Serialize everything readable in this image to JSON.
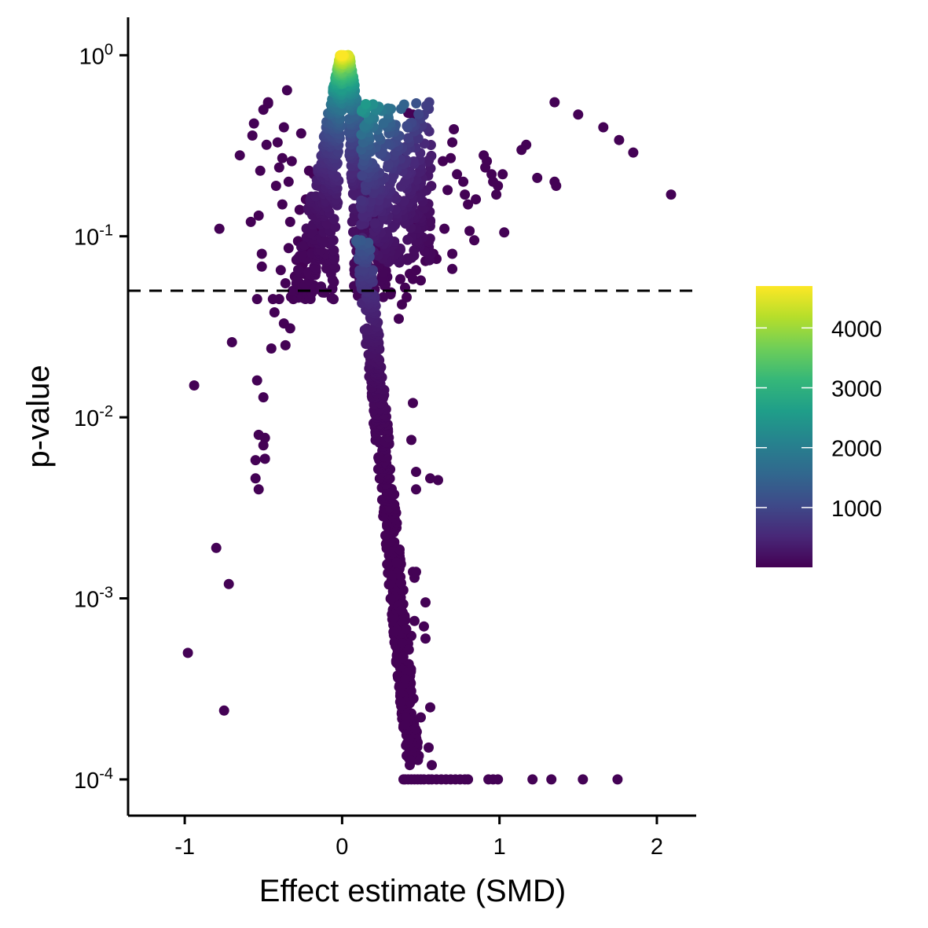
{
  "chart_data": {
    "type": "scatter",
    "title": "",
    "xlabel": "Effect estimate (SMD)",
    "ylabel": "p-value",
    "x_scale": "linear",
    "y_scale": "log10",
    "xlim": [
      -1.36,
      2.25
    ],
    "ylim": [
      6.31e-05,
      1.62
    ],
    "grid": false,
    "x_ticks": [
      {
        "value": -1,
        "label": "-1"
      },
      {
        "value": 0,
        "label": "0"
      },
      {
        "value": 1,
        "label": "1"
      },
      {
        "value": 2,
        "label": "2"
      }
    ],
    "y_ticks": [
      {
        "value": 1,
        "base": "10",
        "exp": "0"
      },
      {
        "value": 0.1,
        "base": "10",
        "exp": "-1"
      },
      {
        "value": 0.01,
        "base": "10",
        "exp": "-2"
      },
      {
        "value": 0.001,
        "base": "10",
        "exp": "-3"
      },
      {
        "value": 0.0001,
        "base": "10",
        "exp": "-4"
      }
    ],
    "reference_line": {
      "y": 0.05,
      "style": "dashed",
      "color": "#000000"
    },
    "color_scale": {
      "name": "viridis",
      "legend_position": "right",
      "min": 1,
      "max": 4700,
      "ticks": [
        1000,
        2000,
        3000,
        4000
      ],
      "tick_labels": [
        "1000",
        "2000",
        "3000",
        "4000"
      ],
      "stops": [
        "#440154",
        "#482878",
        "#3e4a89",
        "#31688e",
        "#26828e",
        "#1f9e89",
        "#35b779",
        "#6ece58",
        "#b5de2b",
        "#fde725"
      ]
    },
    "points": [
      [
        -0.98,
        0.0005,
        10
      ],
      [
        -0.94,
        0.015,
        10
      ],
      [
        -0.8,
        0.0019,
        10
      ],
      [
        -0.78,
        0.11,
        10
      ],
      [
        -0.75,
        0.00024,
        10
      ],
      [
        -0.72,
        0.0012,
        10
      ],
      [
        -0.7,
        0.026,
        10
      ],
      [
        -0.65,
        0.28,
        10
      ],
      [
        -0.58,
        0.12,
        10
      ],
      [
        -0.57,
        0.36,
        10
      ],
      [
        -0.56,
        0.42,
        10
      ],
      [
        -0.55,
        0.0058,
        10
      ],
      [
        -0.55,
        0.0046,
        10
      ],
      [
        -0.54,
        0.016,
        10
      ],
      [
        -0.53,
        0.004,
        10
      ],
      [
        -0.53,
        0.008,
        10
      ],
      [
        -0.54,
        0.045,
        10
      ],
      [
        -0.53,
        0.13,
        10
      ],
      [
        -0.52,
        0.23,
        10
      ],
      [
        -0.51,
        0.068,
        10
      ],
      [
        -0.51,
        0.08,
        10
      ],
      [
        -0.5,
        0.007,
        10
      ],
      [
        -0.5,
        0.0129,
        10
      ],
      [
        -0.5,
        0.5,
        10
      ],
      [
        -0.49,
        0.0077,
        10
      ],
      [
        -0.49,
        0.0059,
        10
      ],
      [
        -0.48,
        0.32,
        10
      ],
      [
        -0.47,
        0.54,
        10
      ],
      [
        -0.47,
        0.55,
        10
      ],
      [
        -0.45,
        0.024,
        10
      ],
      [
        -0.44,
        0.045,
        10
      ],
      [
        -0.43,
        0.038,
        10
      ],
      [
        -0.42,
        0.19,
        10
      ],
      [
        -0.41,
        0.33,
        10
      ],
      [
        -0.4,
        0.045,
        10
      ],
      [
        -0.4,
        0.24,
        10
      ],
      [
        -0.39,
        0.065,
        10
      ],
      [
        -0.38,
        0.15,
        10
      ],
      [
        -0.38,
        0.27,
        10
      ],
      [
        -0.37,
        0.4,
        10
      ],
      [
        -0.37,
        0.033,
        10
      ],
      [
        -0.36,
        0.025,
        10
      ],
      [
        -0.36,
        0.055,
        10
      ],
      [
        -0.35,
        0.64,
        10
      ],
      [
        -0.34,
        0.086,
        10
      ],
      [
        -0.34,
        0.2,
        10
      ],
      [
        -0.33,
        0.031,
        10
      ],
      [
        -0.33,
        0.12,
        10
      ],
      [
        -0.32,
        0.26,
        10
      ],
      [
        -0.31,
        0.045,
        10
      ],
      [
        -0.3,
        0.06,
        10
      ],
      [
        -0.29,
        0.074,
        10
      ],
      [
        -0.28,
        0.094,
        10
      ],
      [
        -0.27,
        0.055,
        10
      ],
      [
        -0.27,
        0.14,
        10
      ],
      [
        -0.26,
        0.37,
        10
      ],
      [
        -0.25,
        0.07,
        10
      ],
      [
        -0.24,
        0.062,
        10
      ],
      [
        -0.23,
        0.16,
        10
      ],
      [
        -0.22,
        0.087,
        10
      ],
      [
        -0.21,
        0.23,
        10
      ],
      [
        -0.2,
        0.1,
        10
      ],
      [
        -0.19,
        0.082,
        10
      ],
      [
        -0.18,
        0.22,
        10
      ],
      [
        -0.17,
        0.094,
        10
      ],
      [
        -0.16,
        0.11,
        10
      ],
      [
        -0.15,
        0.19,
        10
      ],
      [
        0.39,
        0.0001,
        10
      ],
      [
        0.4,
        0.0001,
        10
      ],
      [
        0.42,
        0.0001,
        10
      ],
      [
        0.44,
        0.0001,
        10
      ],
      [
        0.46,
        0.0001,
        10
      ],
      [
        0.48,
        0.0001,
        10
      ],
      [
        0.5,
        0.0001,
        10
      ],
      [
        0.52,
        0.0001,
        10
      ],
      [
        0.55,
        0.0001,
        10
      ],
      [
        0.57,
        0.0001,
        10
      ],
      [
        0.6,
        0.0001,
        10
      ],
      [
        0.63,
        0.0001,
        10
      ],
      [
        0.66,
        0.0001,
        10
      ],
      [
        0.69,
        0.0001,
        10
      ],
      [
        0.72,
        0.0001,
        10
      ],
      [
        0.75,
        0.0001,
        10
      ],
      [
        0.78,
        0.0001,
        10
      ],
      [
        0.8,
        0.0001,
        10
      ],
      [
        0.93,
        0.0001,
        10
      ],
      [
        0.96,
        0.0001,
        10
      ],
      [
        0.99,
        0.0001,
        10
      ],
      [
        1.21,
        0.0001,
        10
      ],
      [
        1.33,
        0.0001,
        10
      ],
      [
        1.53,
        0.0001,
        10
      ],
      [
        1.75,
        0.0001,
        10
      ],
      [
        0.45,
        0.012,
        10
      ],
      [
        0.44,
        0.0075,
        10
      ],
      [
        0.47,
        0.005,
        10
      ],
      [
        0.47,
        0.004,
        10
      ],
      [
        0.56,
        0.0046,
        10
      ],
      [
        0.61,
        0.0045,
        10
      ],
      [
        0.46,
        0.0013,
        10
      ],
      [
        0.45,
        0.0014,
        10
      ],
      [
        0.47,
        0.0014,
        10
      ],
      [
        0.53,
        0.00095,
        10
      ],
      [
        0.52,
        0.0007,
        10
      ],
      [
        0.53,
        0.0006,
        10
      ],
      [
        0.56,
        0.00025,
        10
      ],
      [
        0.55,
        0.00015,
        10
      ],
      [
        0.57,
        0.00012,
        10
      ],
      [
        0.43,
        0.00012,
        10
      ],
      [
        0.48,
        0.00016,
        10
      ],
      [
        0.5,
        0.00022,
        10
      ],
      [
        0.46,
        0.00075,
        10
      ],
      [
        0.44,
        0.00062,
        10
      ],
      [
        0.36,
        0.035,
        10
      ],
      [
        0.38,
        0.042,
        10
      ],
      [
        0.4,
        0.052,
        10
      ],
      [
        0.31,
        0.049,
        10
      ],
      [
        1.35,
        0.55,
        10
      ],
      [
        1.5,
        0.47,
        10
      ],
      [
        1.66,
        0.4,
        10
      ],
      [
        1.76,
        0.34,
        10
      ],
      [
        1.85,
        0.29,
        10
      ],
      [
        2.09,
        0.17,
        10
      ],
      [
        1.36,
        0.19,
        10
      ],
      [
        1.35,
        0.2,
        10
      ],
      [
        1.24,
        0.21,
        10
      ],
      [
        1.17,
        0.32,
        10
      ],
      [
        1.14,
        0.3,
        10
      ],
      [
        1.03,
        0.105,
        10
      ],
      [
        1.02,
        0.22,
        10
      ],
      [
        0.99,
        0.19,
        10
      ],
      [
        0.98,
        0.17,
        10
      ],
      [
        0.96,
        0.2,
        10
      ],
      [
        0.95,
        0.22,
        10
      ],
      [
        0.92,
        0.26,
        10
      ],
      [
        0.91,
        0.24,
        10
      ],
      [
        0.9,
        0.28,
        10
      ],
      [
        0.85,
        0.16,
        10
      ],
      [
        0.84,
        0.095,
        10
      ],
      [
        0.81,
        0.107,
        10
      ],
      [
        0.8,
        0.15,
        10
      ],
      [
        0.78,
        0.17,
        10
      ],
      [
        0.77,
        0.2,
        10
      ],
      [
        0.73,
        0.22,
        10
      ],
      [
        0.71,
        0.39,
        10
      ],
      [
        0.7,
        0.33,
        10
      ],
      [
        0.69,
        0.27,
        10
      ],
      [
        0.7,
        0.08,
        10
      ],
      [
        0.7,
        0.066,
        10
      ],
      [
        0.67,
        0.18,
        10
      ],
      [
        0.65,
        0.11,
        10
      ],
      [
        0.64,
        0.26,
        10
      ],
      [
        0.6,
        0.075,
        10
      ],
      [
        0.58,
        0.08,
        10
      ],
      [
        0.56,
        0.12,
        10
      ],
      [
        0.53,
        0.073,
        10
      ],
      [
        0.5,
        0.057,
        10
      ],
      [
        0.48,
        0.12,
        10
      ],
      [
        0.45,
        0.47,
        10
      ],
      [
        0.42,
        0.48,
        10
      ],
      [
        0.46,
        0.43,
        10
      ],
      [
        0.44,
        0.35,
        10
      ],
      [
        0.4,
        0.31,
        10
      ],
      [
        0.39,
        0.27,
        10
      ],
      [
        0.43,
        0.062,
        10
      ],
      [
        0.45,
        0.058,
        10
      ],
      [
        0.47,
        0.065,
        10
      ],
      [
        0.41,
        0.046,
        10
      ],
      [
        0.37,
        0.058,
        10
      ],
      [
        0.36,
        0.082,
        10
      ],
      [
        0.35,
        0.16,
        10
      ],
      [
        0.34,
        0.13,
        10
      ]
    ]
  }
}
